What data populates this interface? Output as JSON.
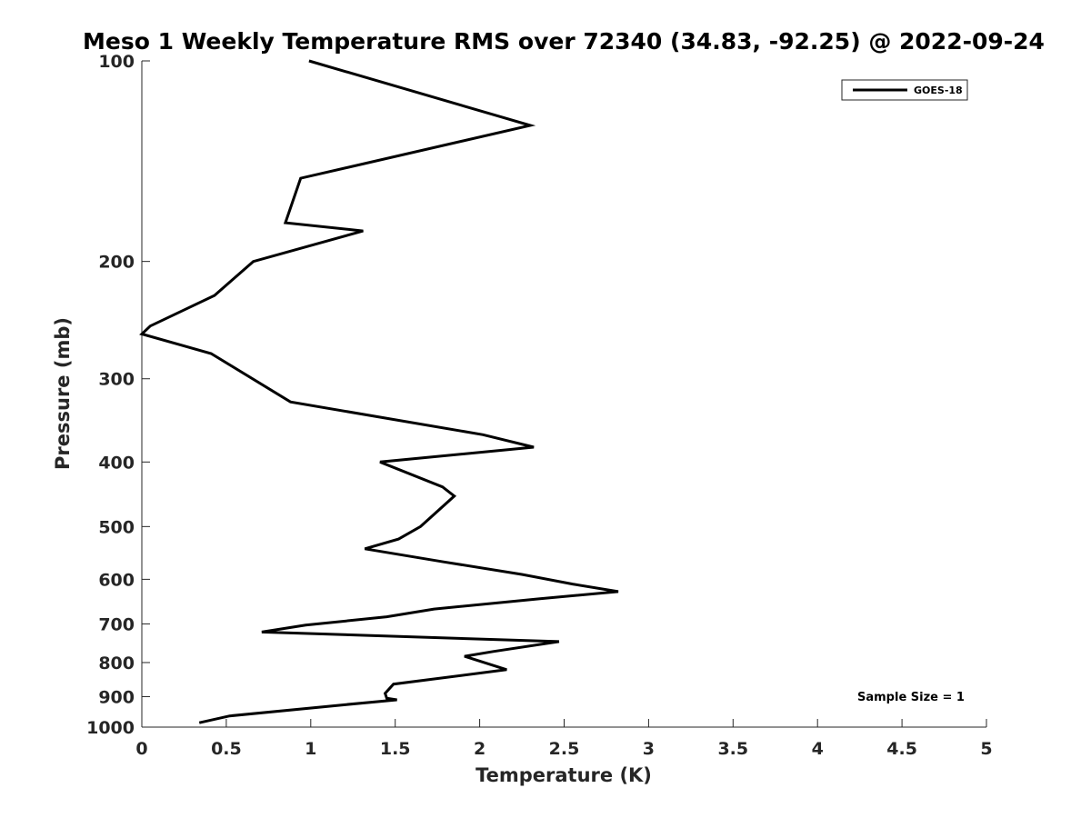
{
  "chart_data": {
    "type": "line",
    "title": "Meso 1 Weekly Temperature RMS over 72340 (34.83, -92.25) @ 2022-09-24",
    "xlabel": "Temperature (K)",
    "ylabel": "Pressure (mb)",
    "xlim": [
      0,
      5
    ],
    "ylim": [
      1000,
      100
    ],
    "yscale": "log",
    "x_ticks": [
      0,
      0.5,
      1,
      1.5,
      2,
      2.5,
      3,
      3.5,
      4,
      4.5,
      5
    ],
    "x_tick_labels": [
      "0",
      "0.5",
      "1",
      "1.5",
      "2",
      "2.5",
      "3",
      "3.5",
      "4",
      "4.5",
      "5"
    ],
    "y_ticks": [
      100,
      200,
      300,
      400,
      500,
      600,
      700,
      800,
      900,
      1000
    ],
    "y_tick_labels": [
      "100",
      "200",
      "300",
      "400",
      "500",
      "600",
      "700",
      "800",
      "900",
      "1000"
    ],
    "grid": false,
    "legend_position": "top-right",
    "annotation": "Sample Size = 1",
    "series": [
      {
        "name": "GOES-18",
        "color": "#000000",
        "points": [
          {
            "x": 0.99,
            "p": 100
          },
          {
            "x": 2.3,
            "p": 125
          },
          {
            "x": 0.94,
            "p": 150
          },
          {
            "x": 0.85,
            "p": 175
          },
          {
            "x": 1.31,
            "p": 180
          },
          {
            "x": 0.66,
            "p": 200
          },
          {
            "x": 0.43,
            "p": 225
          },
          {
            "x": 0.05,
            "p": 250
          },
          {
            "x": 0.0,
            "p": 257
          },
          {
            "x": 0.41,
            "p": 275
          },
          {
            "x": 0.88,
            "p": 325
          },
          {
            "x": 2.02,
            "p": 364
          },
          {
            "x": 2.32,
            "p": 380
          },
          {
            "x": 1.41,
            "p": 400
          },
          {
            "x": 1.78,
            "p": 436
          },
          {
            "x": 1.85,
            "p": 450
          },
          {
            "x": 1.65,
            "p": 500
          },
          {
            "x": 1.52,
            "p": 522
          },
          {
            "x": 1.32,
            "p": 540
          },
          {
            "x": 1.79,
            "p": 565
          },
          {
            "x": 2.25,
            "p": 590
          },
          {
            "x": 2.55,
            "p": 610
          },
          {
            "x": 2.82,
            "p": 626
          },
          {
            "x": 2.35,
            "p": 642
          },
          {
            "x": 1.73,
            "p": 665
          },
          {
            "x": 1.45,
            "p": 683
          },
          {
            "x": 0.97,
            "p": 703
          },
          {
            "x": 0.71,
            "p": 720
          },
          {
            "x": 2.47,
            "p": 744
          },
          {
            "x": 2.08,
            "p": 770
          },
          {
            "x": 1.91,
            "p": 783
          },
          {
            "x": 2.16,
            "p": 820
          },
          {
            "x": 1.49,
            "p": 862
          },
          {
            "x": 1.44,
            "p": 890
          },
          {
            "x": 1.45,
            "p": 905
          },
          {
            "x": 1.51,
            "p": 910
          },
          {
            "x": 1.21,
            "p": 925
          },
          {
            "x": 0.52,
            "p": 962
          },
          {
            "x": 0.34,
            "p": 985
          }
        ]
      }
    ]
  }
}
